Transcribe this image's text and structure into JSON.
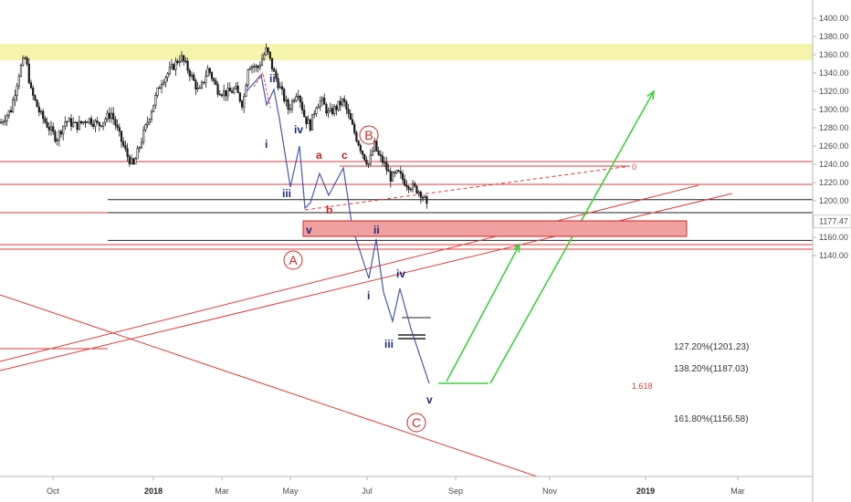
{
  "chart_data": {
    "type": "candlestick",
    "y_axis": {
      "ticks": [
        "1400.00",
        "1380.00",
        "1360.00",
        "1340.00",
        "1320.00",
        "1300.00",
        "1280.00",
        "1260.00",
        "1240.00",
        "1220.00",
        "1200.00",
        "1180.00",
        "1160.00",
        "1140.00"
      ],
      "values": [
        1400,
        1380,
        1360,
        1340,
        1320,
        1300,
        1280,
        1260,
        1240,
        1220,
        1200,
        1180,
        1160,
        1140
      ],
      "range": [
        1121,
        1413
      ]
    },
    "current_price": {
      "label": "1177.47",
      "value": 1177.47
    },
    "x_axis": {
      "ticks": [
        {
          "label": "Oct",
          "bold": false
        },
        {
          "label": "2018",
          "bold": true
        },
        {
          "label": "Mar",
          "bold": false
        },
        {
          "label": "May",
          "bold": false
        },
        {
          "label": "Jul",
          "bold": false
        },
        {
          "label": "Sep",
          "bold": false
        },
        {
          "label": "Nov",
          "bold": false
        },
        {
          "label": "2019",
          "bold": true
        },
        {
          "label": "Mar",
          "bold": false
        }
      ]
    },
    "fib_levels": [
      {
        "label": "127.20%(1201.23)",
        "value": 1201.23
      },
      {
        "label": "138.20%(1187.03)",
        "value": 1187.03
      },
      {
        "label": "161.80%(1156.58)",
        "value": 1156.58
      }
    ],
    "zone_label": "1.618",
    "target_label": "0",
    "major_waves": [
      "A",
      "B",
      "C"
    ],
    "minor_waves": {
      "ii_top": "ii",
      "i_top": "i",
      "iv_b": "iv",
      "iii_b": "iii",
      "v_b": "v",
      "a": "a",
      "b": "b",
      "c": "c",
      "ii_mid": "ii",
      "i_mid": "i",
      "iv_mid": "iv",
      "iii_mid": "iii",
      "v_end": "v"
    },
    "resistance_zone": [
      1354,
      1372
    ],
    "horizontal_levels": [
      1243,
      1218,
      1152,
      1147
    ],
    "colors": {
      "yellow_zone": "#f4f2a8",
      "red_line": "#e33a3a",
      "green_arrow": "#3ad23a",
      "wave_blue": "#1f2a7a",
      "candle": "#1a1a1a",
      "target_zone": "#f0a0a0"
    }
  }
}
